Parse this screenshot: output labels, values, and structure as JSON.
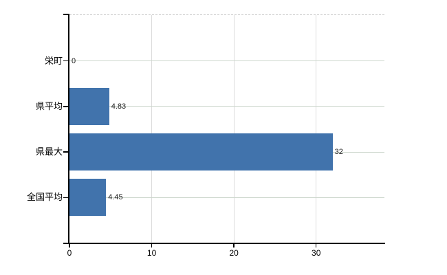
{
  "chart_data": {
    "type": "bar",
    "orientation": "horizontal",
    "title": "",
    "xlabel": "",
    "ylabel": "",
    "categories": [
      "栄町",
      "県平均",
      "県最大",
      "全国平均"
    ],
    "values": [
      0,
      4.83,
      32,
      4.45
    ],
    "value_labels": [
      "0",
      "4.83",
      "32",
      "4.45"
    ],
    "xlim": [
      0,
      38.3
    ],
    "xticks": [
      0,
      10,
      20,
      30
    ],
    "xtick_labels": [
      "0",
      "10",
      "20",
      "30"
    ],
    "legend": "none",
    "grid": {
      "horizontal": "solid line at each category center",
      "vertical": "solid line at each x tick",
      "top_border": "dashed"
    },
    "colors": {
      "bar": "#4173ac",
      "grid_horizontal": "#ccd6cc",
      "grid_vertical": "#dcdcdc",
      "top_border": "#c8c8c8",
      "axis": "#000000",
      "text": "#000000"
    }
  }
}
